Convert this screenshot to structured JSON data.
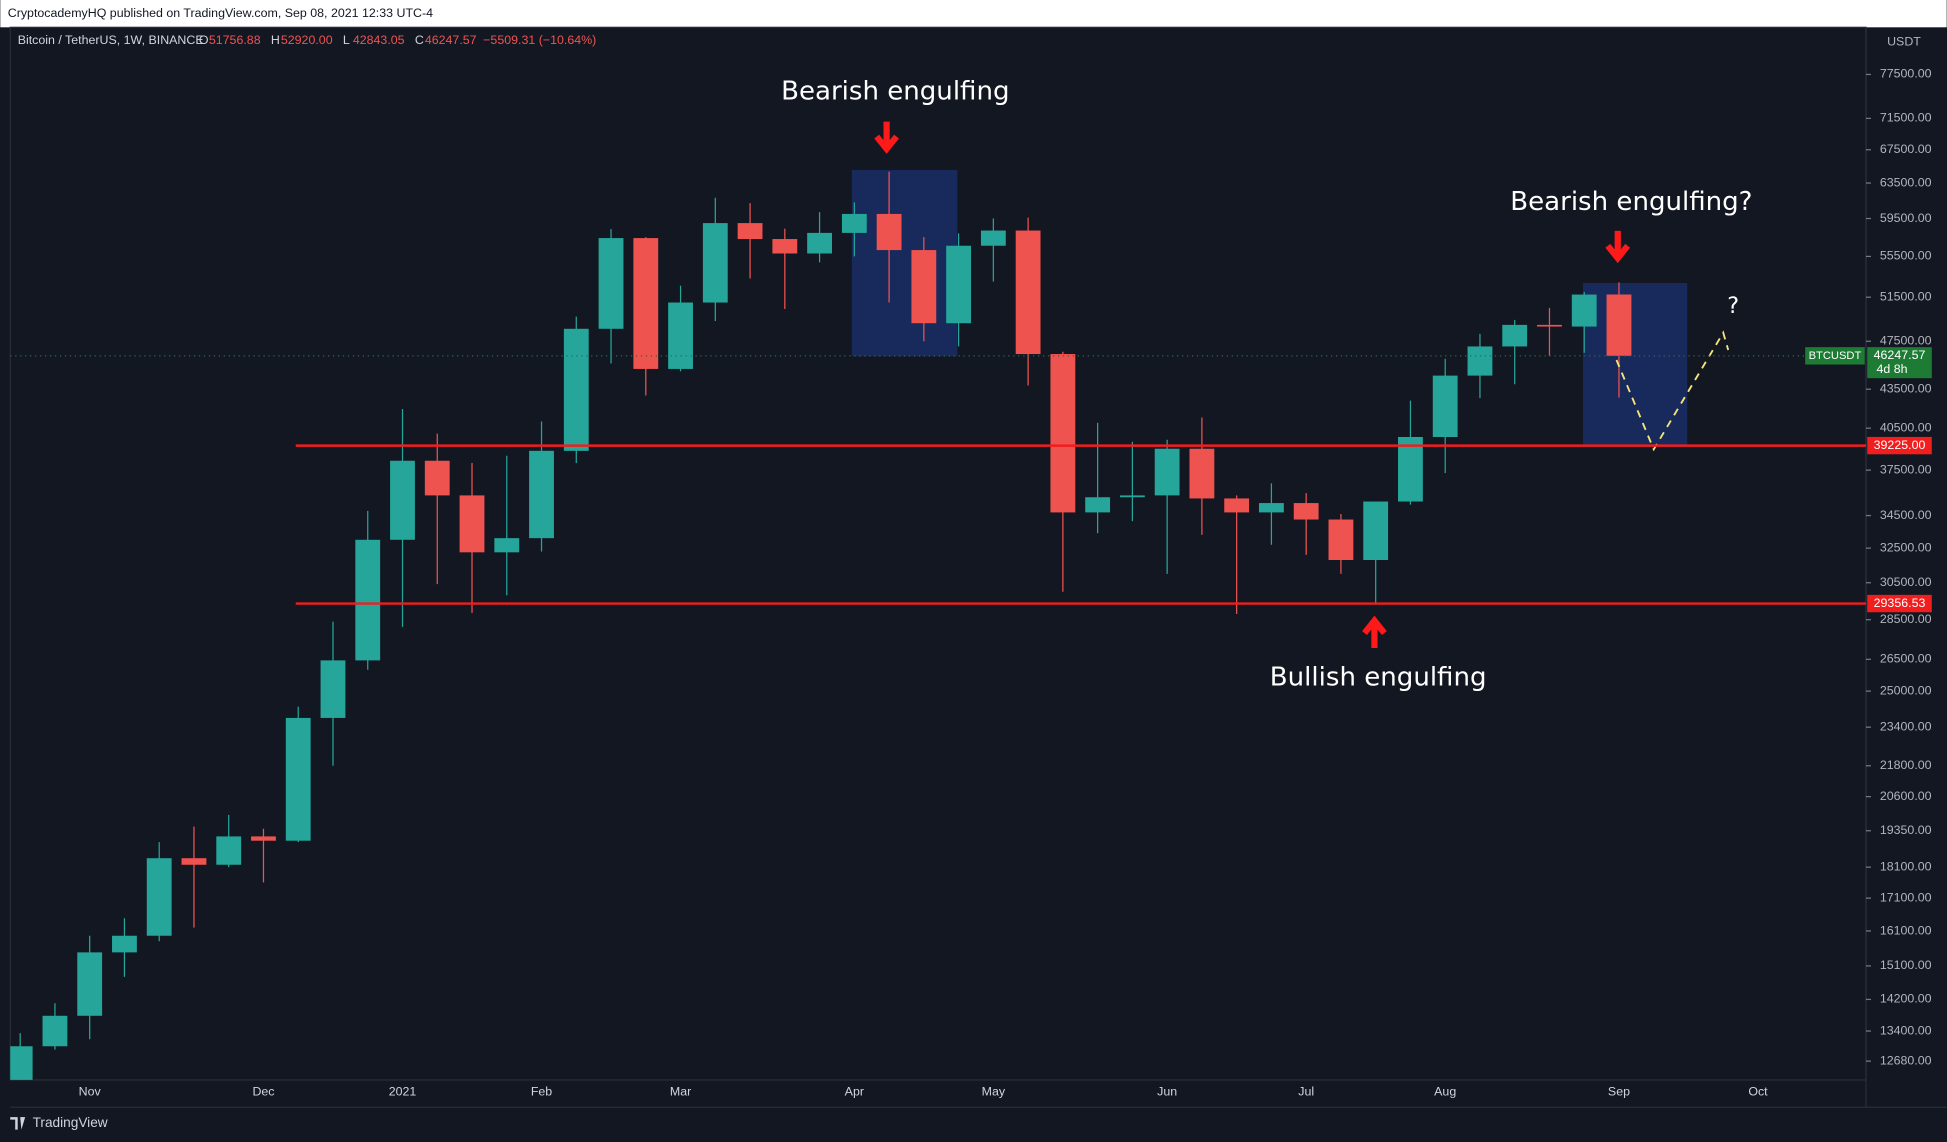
{
  "header": {
    "text": "CryptocademyHQ published on TradingView.com, Sep 08, 2021 12:33 UTC-4"
  },
  "footer": {
    "brand": "TradingView"
  },
  "chart_data": {
    "type": "candlestick",
    "legend": {
      "symbol": "Bitcoin / TetherUS, 1W, BINANCE",
      "fields": [
        {
          "prefix": "O",
          "label": "51756.88"
        },
        {
          "prefix": "H",
          "label": "52920.00"
        },
        {
          "prefix": "L",
          "label": "42843.05"
        },
        {
          "prefix": "C",
          "label": "46247.57"
        }
      ],
      "change": "−5509.31 (−10.64%)"
    },
    "currency": "USDT",
    "categories": [
      null,
      null,
      "Nov",
      null,
      null,
      null,
      null,
      "Dec",
      null,
      null,
      null,
      "2021",
      null,
      null,
      null,
      "Feb",
      null,
      null,
      null,
      "Mar",
      null,
      null,
      null,
      null,
      "Apr",
      null,
      null,
      null,
      "May",
      null,
      null,
      null,
      null,
      "Jun",
      null,
      null,
      null,
      "Jul",
      null,
      null,
      null,
      "Aug",
      null,
      null,
      null,
      null,
      "Sep"
    ],
    "next_category": "Oct",
    "open": [
      11502,
      13031,
      13780,
      15480,
      15960,
      18400,
      18180,
      19150,
      19000,
      23800,
      26450,
      33000,
      38150,
      35800,
      32250,
      33100,
      38850,
      48600,
      57400,
      45150,
      51000,
      59000,
      57300,
      55800,
      57950,
      60000,
      56150,
      49100,
      56600,
      58200,
      46400,
      34700,
      35680,
      35800,
      39000,
      35600,
      34700,
      35300,
      34250,
      31800,
      35400,
      39850,
      44600,
      47050,
      48950,
      48800,
      51756.88
    ],
    "high": [
      13350,
      14100,
      15960,
      16480,
      18950,
      19500,
      19920,
      19420,
      24300,
      28400,
      34800,
      41950,
      40100,
      38000,
      38500,
      41000,
      49700,
      58350,
      57500,
      52600,
      61800,
      61200,
      58400,
      60200,
      61300,
      64850,
      57500,
      57900,
      59500,
      59600,
      46600,
      40900,
      39500,
      39650,
      41300,
      35800,
      36600,
      35950,
      34600,
      35400,
      42600,
      46000,
      48150,
      49400,
      50500,
      52000,
      52920
    ],
    "low": [
      11430,
      12950,
      13200,
      14800,
      15800,
      16200,
      18100,
      17600,
      18950,
      21800,
      26000,
      28130,
      30420,
      28850,
      29800,
      32300,
      37980,
      45600,
      43000,
      44950,
      49300,
      53300,
      50400,
      54900,
      55500,
      51000,
      47500,
      47050,
      53000,
      43800,
      30000,
      33400,
      34150,
      31000,
      33300,
      28800,
      32700,
      32100,
      31000,
      29300,
      35200,
      37300,
      42800,
      43900,
      46250,
      46500,
      42843.05
    ],
    "close": [
      13031,
      13780,
      15480,
      15960,
      18400,
      18180,
      19150,
      19000,
      23800,
      26450,
      33000,
      38150,
      35800,
      32250,
      33100,
      38850,
      48600,
      57400,
      45150,
      51000,
      59000,
      57300,
      55800,
      57950,
      60000,
      56150,
      49100,
      56600,
      58200,
      46400,
      34700,
      35680,
      35800,
      39000,
      35600,
      34700,
      35300,
      34250,
      31800,
      35400,
      39850,
      44600,
      47050,
      48950,
      48800,
      51750,
      46247.57
    ],
    "up_color": "#26a69a",
    "down_color": "#ef5350",
    "log_scale": true,
    "ylim": [
      12250,
      84500
    ],
    "yticks": [
      {
        "value": 77500,
        "label": "77500.00"
      },
      {
        "value": 71500,
        "label": "71500.00"
      },
      {
        "value": 67500,
        "label": "67500.00"
      },
      {
        "value": 63500,
        "label": "63500.00"
      },
      {
        "value": 59500,
        "label": "59500.00"
      },
      {
        "value": 55500,
        "label": "55500.00"
      },
      {
        "value": 51500,
        "label": "51500.00"
      },
      {
        "value": 47500,
        "label": "47500.00"
      },
      {
        "value": 43500,
        "label": "43500.00"
      },
      {
        "value": 40500,
        "label": "40500.00"
      },
      {
        "value": 37500,
        "label": "37500.00"
      },
      {
        "value": 34500,
        "label": "34500.00"
      },
      {
        "value": 32500,
        "label": "32500.00"
      },
      {
        "value": 30500,
        "label": "30500.00"
      },
      {
        "value": 28500,
        "label": "28500.00"
      },
      {
        "value": 26500,
        "label": "26500.00"
      },
      {
        "value": 25000,
        "label": "25000.00"
      },
      {
        "value": 23400,
        "label": "23400.00"
      },
      {
        "value": 21800,
        "label": "21800.00"
      },
      {
        "value": 20600,
        "label": "20600.00"
      },
      {
        "value": 19350,
        "label": "19350.00"
      },
      {
        "value": 18100,
        "label": "18100.00"
      },
      {
        "value": 17100,
        "label": "17100.00"
      },
      {
        "value": 16100,
        "label": "16100.00"
      },
      {
        "value": 15100,
        "label": "15100.00"
      },
      {
        "value": 14200,
        "label": "14200.00"
      },
      {
        "value": 13400,
        "label": "13400.00"
      },
      {
        "value": 12680,
        "label": "12680.00"
      }
    ],
    "levels": [
      {
        "value": 39225,
        "label": "39225.00",
        "color": "#f21d1d"
      },
      {
        "value": 29356.53,
        "label": "29356.53",
        "color": "#f21d1d"
      }
    ],
    "last_price": {
      "symbol": "BTCUSDT",
      "value": 46247.57,
      "countdown": "4d 8h",
      "color": "#1e7b34"
    },
    "annotations": {
      "top": "Bearish engulfing",
      "right": "Bearish engulfing?",
      "bottom": "Bullish engulfing",
      "question": "?"
    }
  }
}
